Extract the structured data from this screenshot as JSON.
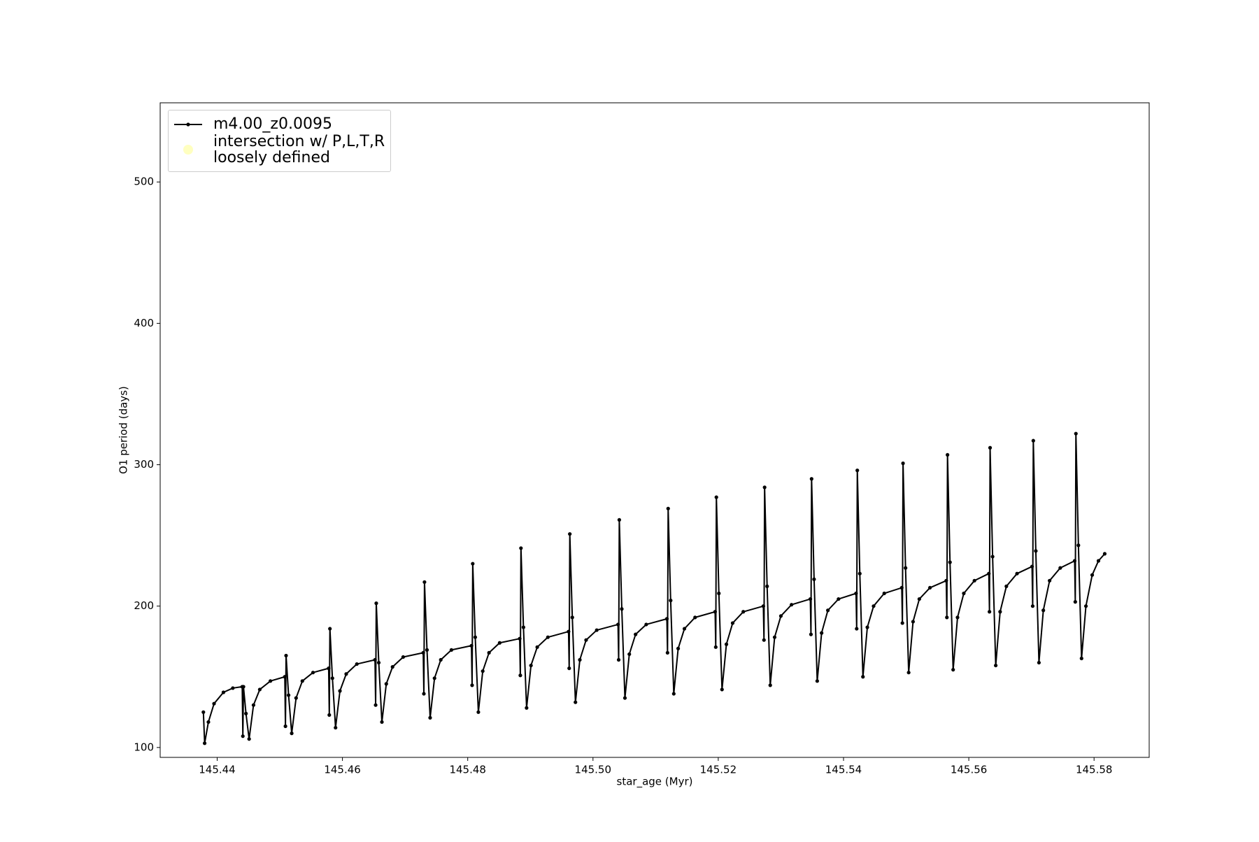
{
  "chart_data": {
    "type": "line",
    "xlabel": "star_age (Myr)",
    "ylabel": "O1 period (days)",
    "xlim": [
      145.4309,
      145.5888
    ],
    "ylim": [
      93,
      556
    ],
    "xticks": [
      145.44,
      145.46,
      145.48,
      {
        "value": 145.5,
        "label": "145.50"
      },
      145.52,
      145.54,
      145.56,
      145.58
    ],
    "yticks": [
      100,
      200,
      300,
      400,
      500
    ],
    "grid": false,
    "legend": "upper left",
    "series": [
      {
        "name": "m4.00_z0.0095",
        "type": "line",
        "color": "#000000",
        "x": [
          145.4378,
          145.438,
          145.4386,
          145.4395,
          145.441,
          145.4425,
          145.444,
          145.4441,
          145.4442,
          145.4446,
          145.4451,
          145.4458,
          145.4468,
          145.4485,
          145.4508,
          145.4509,
          145.451,
          145.4514,
          145.4519,
          145.4526,
          145.4536,
          145.4553,
          145.4578,
          145.4579,
          145.458,
          145.4584,
          145.4589,
          145.4596,
          145.4606,
          145.4623,
          145.4652,
          145.4653,
          145.4654,
          145.4658,
          145.4663,
          145.467,
          145.468,
          145.4697,
          145.4729,
          145.473,
          145.4731,
          145.4735,
          145.474,
          145.4747,
          145.4757,
          145.4774,
          145.4806,
          145.4807,
          145.4808,
          145.4812,
          145.4817,
          145.4824,
          145.4834,
          145.4851,
          145.4883,
          145.4884,
          145.4885,
          145.4889,
          145.4894,
          145.4901,
          145.4911,
          145.4928,
          145.4961,
          145.4962,
          145.4963,
          145.4967,
          145.4972,
          145.4979,
          145.4989,
          145.5006,
          145.504,
          145.5041,
          145.5042,
          145.5046,
          145.5051,
          145.5058,
          145.5068,
          145.5085,
          145.5118,
          145.5119,
          145.512,
          145.5124,
          145.5129,
          145.5136,
          145.5146,
          145.5163,
          145.5195,
          145.5196,
          145.5197,
          145.5201,
          145.5206,
          145.5213,
          145.5223,
          145.524,
          145.5272,
          145.5273,
          145.5274,
          145.5278,
          145.5283,
          145.529,
          145.53,
          145.5317,
          145.5347,
          145.5348,
          145.5349,
          145.5353,
          145.5358,
          145.5365,
          145.5375,
          145.5392,
          145.542,
          145.5421,
          145.5422,
          145.5426,
          145.5431,
          145.5438,
          145.5448,
          145.5465,
          145.5493,
          145.5494,
          145.5495,
          145.5499,
          145.5504,
          145.5511,
          145.5521,
          145.5538,
          145.5564,
          145.5565,
          145.5566,
          145.557,
          145.5575,
          145.5582,
          145.5592,
          145.5609,
          145.5632,
          145.5633,
          145.5634,
          145.5638,
          145.5643,
          145.565,
          145.566,
          145.5677,
          145.5701,
          145.5702,
          145.5703,
          145.5707,
          145.5712,
          145.5719,
          145.5729,
          145.5746,
          145.5769,
          145.577,
          145.5771,
          145.5775,
          145.578,
          145.5787,
          145.5797,
          145.5807,
          145.5817
        ],
        "values": [
          125,
          103,
          118,
          131,
          139,
          142,
          143,
          108,
          143,
          124,
          106,
          130,
          141,
          147,
          150,
          115,
          165,
          137,
          110,
          135,
          147,
          153,
          156,
          123,
          184,
          149,
          114,
          140,
          152,
          159,
          162,
          130,
          202,
          160,
          118,
          145,
          157,
          164,
          167,
          138,
          217,
          169,
          121,
          149,
          162,
          169,
          172,
          144,
          230,
          178,
          125,
          154,
          167,
          174,
          177,
          151,
          241,
          185,
          128,
          158,
          171,
          178,
          182,
          156,
          251,
          192,
          132,
          162,
          176,
          183,
          187,
          162,
          261,
          198,
          135,
          166,
          180,
          187,
          191,
          167,
          269,
          204,
          138,
          170,
          184,
          192,
          196,
          171,
          277,
          209,
          141,
          173,
          188,
          196,
          200,
          176,
          284,
          214,
          144,
          178,
          193,
          201,
          205,
          180,
          290,
          219,
          147,
          181,
          197,
          205,
          209,
          184,
          296,
          223,
          150,
          185,
          200,
          209,
          213,
          188,
          301,
          227,
          153,
          189,
          205,
          213,
          218,
          192,
          307,
          231,
          155,
          192,
          209,
          218,
          223,
          196,
          312,
          235,
          158,
          196,
          214,
          223,
          228,
          200,
          317,
          239,
          160,
          197,
          218,
          227,
          232,
          203,
          322,
          243,
          163,
          200,
          222,
          232,
          237
        ]
      },
      {
        "name": "intersection w/ P,L,T,R\nloosely defined",
        "type": "scatter",
        "color": "#ffffc0",
        "x": [],
        "values": []
      }
    ]
  }
}
